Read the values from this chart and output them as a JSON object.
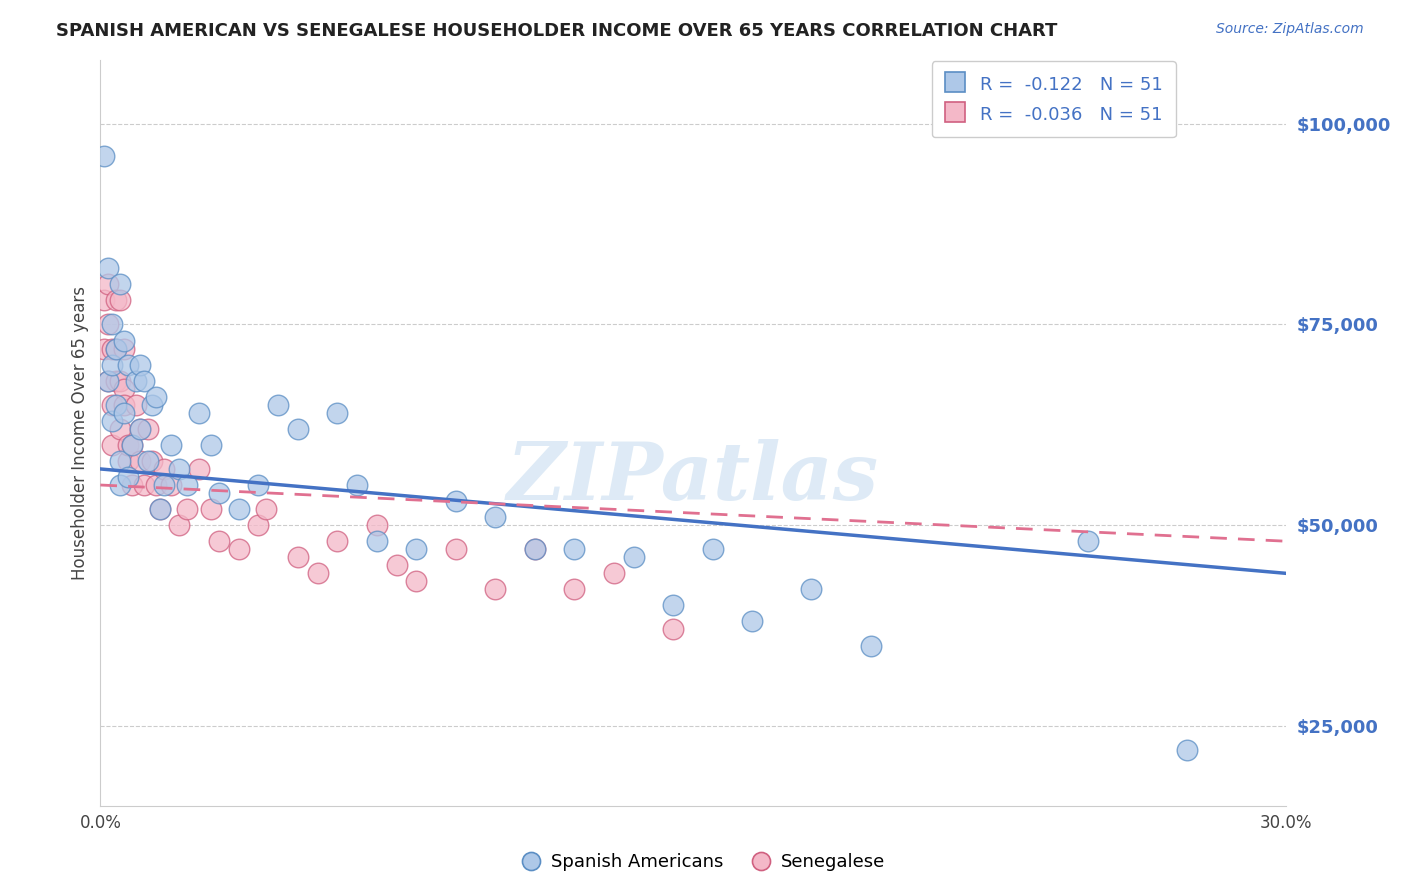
{
  "title": "SPANISH AMERICAN VS SENEGALESE HOUSEHOLDER INCOME OVER 65 YEARS CORRELATION CHART",
  "source": "Source: ZipAtlas.com",
  "ylabel": "Householder Income Over 65 years",
  "xlim": [
    0.0,
    0.3
  ],
  "ylim": [
    15000,
    108000
  ],
  "xticks": [
    0.0,
    0.05,
    0.1,
    0.15,
    0.2,
    0.25,
    0.3
  ],
  "xticklabels": [
    "0.0%",
    "",
    "",
    "",
    "",
    "",
    "30.0%"
  ],
  "yticks": [
    25000,
    50000,
    75000,
    100000
  ],
  "yticklabels": [
    "$25,000",
    "$50,000",
    "$75,000",
    "$100,000"
  ],
  "blue_R": "-0.122",
  "blue_N": "51",
  "pink_R": "-0.036",
  "pink_N": "51",
  "blue_color": "#aec8e8",
  "pink_color": "#f4b8c8",
  "blue_edge_color": "#5b8ec4",
  "pink_edge_color": "#d06080",
  "blue_line_color": "#4472c4",
  "pink_line_color": "#e07090",
  "watermark": "ZIPatlas",
  "legend_blue_label": "Spanish Americans",
  "legend_pink_label": "Senegalese",
  "blue_scatter_x": [
    0.001,
    0.002,
    0.002,
    0.003,
    0.003,
    0.003,
    0.004,
    0.004,
    0.005,
    0.005,
    0.005,
    0.006,
    0.006,
    0.007,
    0.007,
    0.008,
    0.009,
    0.01,
    0.01,
    0.011,
    0.012,
    0.013,
    0.014,
    0.015,
    0.016,
    0.018,
    0.02,
    0.022,
    0.025,
    0.028,
    0.03,
    0.035,
    0.04,
    0.045,
    0.05,
    0.06,
    0.065,
    0.07,
    0.08,
    0.09,
    0.1,
    0.11,
    0.12,
    0.135,
    0.145,
    0.155,
    0.165,
    0.18,
    0.195,
    0.25,
    0.275
  ],
  "blue_scatter_y": [
    96000,
    82000,
    68000,
    75000,
    63000,
    70000,
    72000,
    65000,
    80000,
    58000,
    55000,
    64000,
    73000,
    70000,
    56000,
    60000,
    68000,
    62000,
    70000,
    68000,
    58000,
    65000,
    66000,
    52000,
    55000,
    60000,
    57000,
    55000,
    64000,
    60000,
    54000,
    52000,
    55000,
    65000,
    62000,
    64000,
    55000,
    48000,
    47000,
    53000,
    51000,
    47000,
    47000,
    46000,
    40000,
    47000,
    38000,
    42000,
    35000,
    48000,
    22000
  ],
  "pink_scatter_x": [
    0.001,
    0.001,
    0.002,
    0.002,
    0.002,
    0.003,
    0.003,
    0.003,
    0.004,
    0.004,
    0.004,
    0.005,
    0.005,
    0.005,
    0.006,
    0.006,
    0.006,
    0.007,
    0.007,
    0.008,
    0.008,
    0.009,
    0.01,
    0.01,
    0.011,
    0.012,
    0.013,
    0.014,
    0.015,
    0.016,
    0.018,
    0.02,
    0.022,
    0.025,
    0.028,
    0.03,
    0.035,
    0.04,
    0.042,
    0.05,
    0.055,
    0.06,
    0.07,
    0.075,
    0.08,
    0.09,
    0.1,
    0.11,
    0.12,
    0.13,
    0.145
  ],
  "pink_scatter_y": [
    78000,
    72000,
    75000,
    68000,
    80000,
    72000,
    65000,
    60000,
    68000,
    78000,
    72000,
    68000,
    62000,
    78000,
    67000,
    72000,
    65000,
    58000,
    60000,
    55000,
    60000,
    65000,
    62000,
    58000,
    55000,
    62000,
    58000,
    55000,
    52000,
    57000,
    55000,
    50000,
    52000,
    57000,
    52000,
    48000,
    47000,
    50000,
    52000,
    46000,
    44000,
    48000,
    50000,
    45000,
    43000,
    47000,
    42000,
    47000,
    42000,
    44000,
    37000
  ]
}
